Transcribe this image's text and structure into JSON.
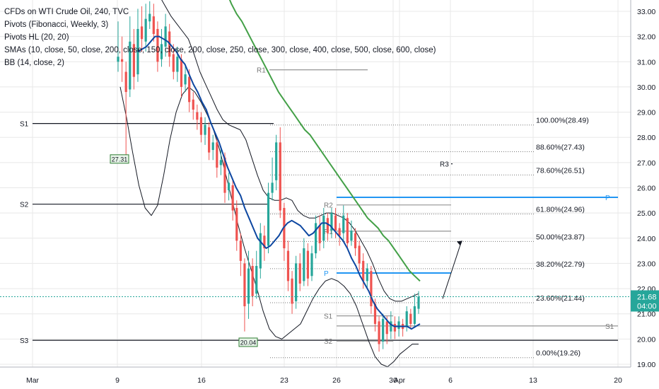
{
  "legend": {
    "symbol": "CFDs on WTI Crude Oil, 240, TVC",
    "pivots_fib": "Pivots (Fibonacci, Weekly, 3)",
    "pivots_hl": "Pivots HL (20, 20)",
    "smas": "SMAs (10, close, 50, close, 200, close, 150, close, 200, close, 250, close, 300, close, 400, close, 500, close, 600, close)",
    "bb": "BB (14, close, 2)"
  },
  "colors": {
    "up": "#26a69a",
    "down": "#ef5350",
    "sma_fast": "#0d47a1",
    "sma_slow": "#43a047",
    "bands": "#131722",
    "pivot_gray": "#9e9e9e",
    "pivot_black": "#131722",
    "pivot_blue": "#2196f3",
    "last_price": "#26a69a",
    "grid": "#e8e8e8"
  },
  "chart_data": {
    "type": "candlestick",
    "x_axis": {
      "ticks": [
        "Mar",
        "9",
        "16",
        "23",
        "26",
        "30",
        "Apr",
        "6",
        "13",
        "20"
      ]
    },
    "y_axis": {
      "ylim": [
        18.9,
        33.4
      ],
      "ticks": [
        "33.00",
        "32.00",
        "31.00",
        "30.00",
        "29.00",
        "28.00",
        "27.00",
        "26.00",
        "25.00",
        "24.00",
        "23.00",
        "22.00",
        "21.00",
        "20.00",
        "19.00"
      ]
    },
    "last_price": {
      "value": 21.68,
      "label": "21.68",
      "countdown": "04:00"
    },
    "candles": [
      [
        31,
        31.2,
        32.6,
        30.6
      ],
      [
        31.1,
        31.0,
        32.0,
        30.2
      ],
      [
        30.6,
        29.8,
        31.0,
        27.3
      ],
      [
        29.9,
        31.8,
        32.8,
        29.6
      ],
      [
        31.7,
        30.4,
        32.3,
        29.9
      ],
      [
        30.5,
        32.3,
        33.1,
        30.2
      ],
      [
        32.4,
        31.9,
        33.2,
        31.4
      ],
      [
        31.8,
        32.7,
        33.3,
        31.4
      ],
      [
        32.6,
        32.9,
        33.4,
        32.3
      ],
      [
        32.8,
        32.1,
        33.3,
        31.8
      ],
      [
        32.3,
        31.0,
        32.6,
        30.6
      ],
      [
        31.1,
        31.7,
        32.3,
        30.8
      ],
      [
        31.6,
        32.4,
        32.9,
        31.2
      ],
      [
        32.2,
        31.2,
        32.5,
        30.8
      ],
      [
        31.3,
        30.6,
        31.7,
        30.3
      ],
      [
        30.6,
        31.2,
        31.6,
        30.2
      ],
      [
        31.1,
        30.0,
        31.3,
        29.6
      ],
      [
        30.1,
        30.5,
        30.9,
        29.8
      ],
      [
        30.4,
        29.4,
        30.7,
        29.0
      ],
      [
        29.5,
        29.1,
        29.8,
        28.7
      ],
      [
        29.0,
        28.7,
        29.3,
        28.3
      ],
      [
        28.8,
        28.1,
        29.0,
        27.8
      ],
      [
        28.1,
        28.5,
        28.8,
        27.7
      ],
      [
        28.4,
        27.4,
        28.6,
        27.1
      ],
      [
        27.5,
        27.8,
        28.1,
        27.1
      ],
      [
        27.8,
        26.8,
        28.0,
        26.4
      ],
      [
        26.9,
        27.1,
        27.6,
        26.5
      ],
      [
        27.2,
        25.8,
        27.4,
        25.4
      ],
      [
        25.9,
        26.2,
        26.6,
        25.5
      ],
      [
        26.1,
        25.1,
        26.3,
        24.7
      ],
      [
        25.2,
        23.9,
        25.5,
        23.5
      ],
      [
        23.9,
        23.1,
        24.2,
        22.5
      ],
      [
        23.0,
        21.3,
        23.2,
        20.3
      ],
      [
        21.4,
        22.8,
        23.5,
        20.8
      ],
      [
        22.9,
        21.7,
        23.2,
        21.3
      ],
      [
        21.8,
        22.9,
        23.5,
        21.6
      ],
      [
        22.8,
        24.2,
        24.6,
        22.4
      ],
      [
        24.1,
        23.6,
        24.5,
        23.1
      ],
      [
        23.7,
        25.8,
        26.2,
        23.4
      ],
      [
        25.8,
        26.2,
        27.2,
        25.5
      ],
      [
        26.3,
        27.8,
        28.1,
        25.9
      ],
      [
        27.8,
        25.1,
        28.4,
        24.8
      ],
      [
        25.2,
        23.6,
        25.4,
        23.1
      ],
      [
        23.5,
        22.3,
        23.9,
        21.9
      ],
      [
        22.4,
        21.4,
        22.7,
        21.0
      ],
      [
        21.5,
        23.0,
        23.3,
        21.2
      ],
      [
        23.0,
        22.2,
        23.4,
        21.9
      ],
      [
        22.3,
        23.6,
        24.0,
        22.1
      ],
      [
        23.5,
        22.4,
        23.8,
        22.1
      ],
      [
        22.5,
        23.4,
        23.7,
        22.3
      ],
      [
        23.4,
        24.6,
        24.9,
        23.2
      ],
      [
        24.5,
        23.8,
        24.9,
        23.5
      ],
      [
        23.9,
        24.9,
        25.2,
        23.6
      ],
      [
        24.8,
        24.2,
        25.0,
        23.9
      ],
      [
        24.3,
        25.0,
        25.2,
        24.0
      ],
      [
        24.9,
        24.3,
        25.2,
        24.0
      ],
      [
        24.4,
        24.1,
        24.6,
        23.7
      ],
      [
        24.2,
        24.9,
        25.3,
        23.9
      ],
      [
        24.8,
        23.8,
        25.0,
        23.6
      ],
      [
        23.9,
        24.3,
        24.7,
        23.7
      ],
      [
        24.2,
        23.6,
        24.4,
        23.3
      ],
      [
        23.7,
        23.0,
        23.9,
        22.7
      ],
      [
        23.1,
        22.3,
        23.4,
        22.0
      ],
      [
        22.3,
        22.8,
        23.0,
        22.0
      ],
      [
        22.7,
        21.3,
        22.9,
        21.0
      ],
      [
        21.4,
        20.6,
        21.6,
        20.3
      ],
      [
        20.7,
        19.8,
        20.9,
        19.5
      ],
      [
        19.9,
        20.8,
        21.0,
        19.6
      ],
      [
        20.7,
        20.2,
        20.9,
        19.8
      ],
      [
        20.3,
        20.7,
        21.1,
        20.0
      ],
      [
        20.6,
        20.3,
        20.9,
        20.0
      ],
      [
        20.4,
        20.7,
        20.9,
        20.1
      ],
      [
        20.6,
        20.4,
        20.8,
        20.1
      ],
      [
        20.5,
        21.1,
        21.3,
        20.3
      ],
      [
        21.0,
        20.6,
        21.2,
        20.4
      ],
      [
        20.6,
        21.3,
        21.8,
        20.5
      ],
      [
        21.2,
        21.68,
        21.9,
        21.0
      ]
    ],
    "sma_fast": [
      31.4,
      31.5,
      31.6,
      31.8,
      32.0,
      32.0,
      31.9,
      31.8,
      31.6,
      31.4,
      31.1,
      30.9,
      30.5,
      30.1,
      29.8,
      29.4,
      29.1,
      28.6,
      28.2,
      27.8,
      27.3,
      26.8,
      26.4,
      26.0,
      25.7,
      25.2,
      24.8,
      24.4,
      24.0,
      23.8,
      23.6,
      23.7,
      23.9,
      24.1,
      24.4,
      24.6,
      24.7,
      24.6,
      24.5,
      24.3,
      24.1,
      24.2,
      24.4,
      24.6,
      24.6,
      24.5,
      24.3,
      24.1,
      23.9,
      23.6,
      23.2,
      22.9,
      22.5,
      22.2,
      21.9,
      21.5,
      21.2,
      21.0,
      20.8,
      20.6,
      20.5,
      20.5,
      20.5,
      20.5,
      20.4,
      20.5,
      20.6
    ],
    "sma_slow": [
      34.6,
      34.2,
      33.8,
      33.3,
      32.9,
      32.6,
      32.2,
      31.8,
      31.4,
      31.0,
      30.6,
      30.2,
      29.8,
      29.5,
      29.2,
      28.9,
      28.6,
      28.3,
      28.1,
      27.8,
      27.5,
      27.2,
      26.9,
      26.6,
      26.3,
      26.0,
      25.7,
      25.4,
      25.1,
      24.8,
      24.6,
      24.4,
      24.1,
      23.9,
      23.6,
      23.3,
      23.0,
      22.7,
      22.5,
      22.3
    ],
    "bb_upper": [
      34.8,
      34.9,
      34.7,
      34.4,
      34.0,
      33.6,
      33.2,
      32.8,
      32.5,
      32.2,
      31.9,
      31.3,
      30.6,
      30.1,
      29.6,
      29.1,
      28.7,
      28.5,
      28.4,
      28.3,
      27.9,
      27.2,
      26.5,
      25.9,
      25.6,
      25.5,
      25.5,
      25.6,
      25.5,
      25.1,
      24.9,
      24.8,
      24.8,
      24.9,
      25.0,
      25.0,
      24.9,
      24.8,
      24.6,
      24.3,
      23.9,
      23.5,
      23.0,
      22.4,
      21.9,
      21.6,
      21.5,
      21.5,
      21.6,
      21.7,
      21.8
    ],
    "bb_lower": [
      30.0,
      28.8,
      27.4,
      26.1,
      25.2,
      24.9,
      25.3,
      26.5,
      27.9,
      29.0,
      29.7,
      30.0,
      29.8,
      29.4,
      28.9,
      28.3,
      27.5,
      26.5,
      25.5,
      24.5,
      23.6,
      22.8,
      22.0,
      21.1,
      20.4,
      20.1,
      20.0,
      20.2,
      20.4,
      20.6,
      21.1,
      21.6,
      22.0,
      22.3,
      22.4,
      22.3,
      22.1,
      21.8,
      21.3,
      20.6,
      19.9,
      19.3,
      19.0,
      18.9,
      19.1,
      19.4,
      19.6,
      19.8,
      19.8
    ],
    "pivot_lines": [
      {
        "label": "S1",
        "value": 28.55,
        "from": "2",
        "to": "22"
      },
      {
        "label": "S2",
        "value": 25.35,
        "from": "2",
        "to": "21"
      },
      {
        "label": "S3",
        "value": 19.95,
        "from": "2",
        "to": "20"
      },
      {
        "label": "R1",
        "value": 30.68,
        "from": "21",
        "to": "25"
      },
      {
        "label": "R3",
        "value": 26.95,
        "from": "28",
        "to": "32"
      },
      {
        "label": "R2",
        "value": 25.32,
        "from": "26",
        "to": "32"
      },
      {
        "label": "R1",
        "value": 24.28,
        "from": "26",
        "to": "32"
      },
      {
        "label": "P",
        "value": 25.62,
        "from": "20",
        "to": "26"
      },
      {
        "label": "P",
        "value": 22.62,
        "from": "26",
        "to": "32"
      },
      {
        "label": "S1",
        "value": 20.52,
        "from": "20",
        "to": "26"
      },
      {
        "label": "S1",
        "value": 20.92,
        "from": "26",
        "to": "30"
      },
      {
        "label": "S2",
        "value": 19.92,
        "from": "26",
        "to": "30"
      }
    ],
    "fibonacci": [
      {
        "label": "100.00%(28.49)",
        "value": 28.49
      },
      {
        "label": "88.60%(27.43)",
        "value": 27.43
      },
      {
        "label": "78.60%(26.51)",
        "value": 26.51
      },
      {
        "label": "61.80%(24.96)",
        "value": 24.96
      },
      {
        "label": "50.00%(23.87)",
        "value": 23.87
      },
      {
        "label": "38.20%(22.79)",
        "value": 22.79
      },
      {
        "label": "23.60%(21.44)",
        "value": 21.44
      },
      {
        "label": "0.00%(19.26)",
        "value": 19.26
      }
    ],
    "markers": [
      {
        "label": "27.31",
        "value": 27.31
      },
      {
        "label": "20.04",
        "value": 20.04
      }
    ]
  }
}
